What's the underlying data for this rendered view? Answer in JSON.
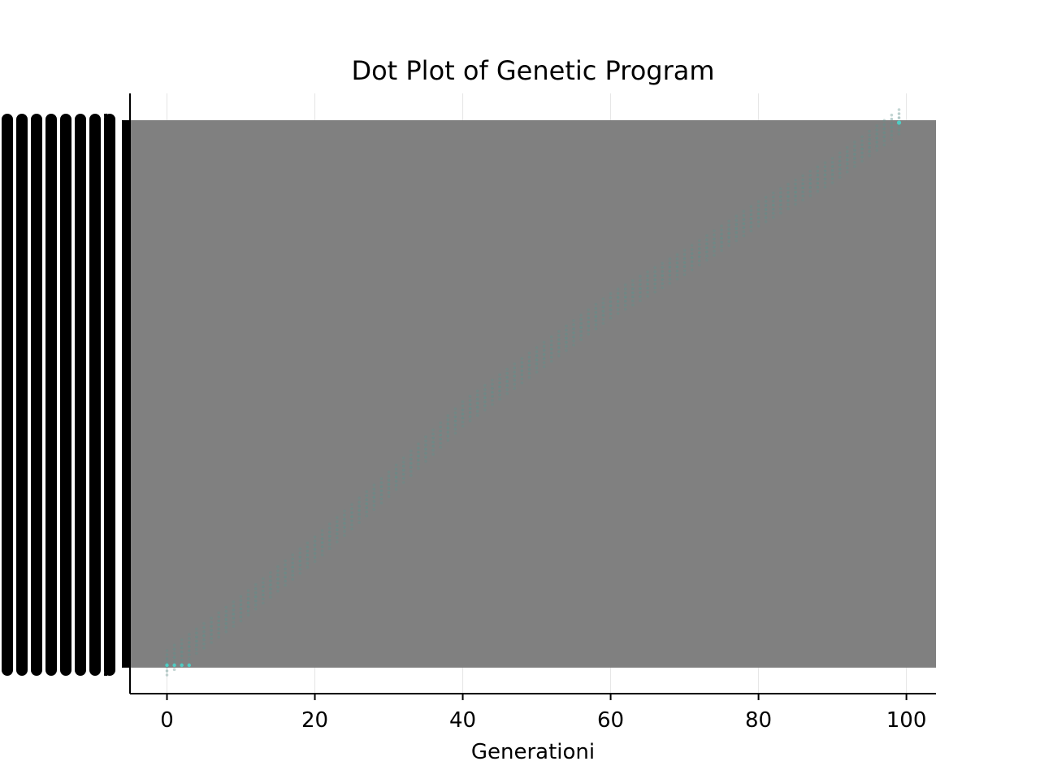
{
  "chart_data": {
    "type": "scatter",
    "title": "Dot Plot of Genetic Program",
    "xlabel": "Generationi",
    "ylabel": "",
    "xlim": [
      -5,
      104
    ],
    "xticks": [
      0,
      20,
      40,
      60,
      80,
      100
    ],
    "x_grid": true,
    "y_tick_labels_legible": false,
    "background_band_color": "#808080",
    "axis_color": "#000000",
    "grid_color": "#e5e5e5",
    "dot_color": "#5f8f8a",
    "accent_dot_color": "#4ecdc4",
    "series": [
      {
        "description": "diagonal",
        "points": [
          {
            "x": 0,
            "row": 0
          },
          {
            "x": 10,
            "row": 0.1
          },
          {
            "x": 20,
            "row": 0.21
          },
          {
            "x": 30,
            "row": 0.33
          },
          {
            "x": 40,
            "row": 0.46
          },
          {
            "x": 50,
            "row": 0.56
          },
          {
            "x": 60,
            "row": 0.66
          },
          {
            "x": 70,
            "row": 0.74
          },
          {
            "x": 80,
            "row": 0.83
          },
          {
            "x": 90,
            "row": 0.91
          },
          {
            "x": 99,
            "row": 1.0
          }
        ]
      }
    ]
  }
}
